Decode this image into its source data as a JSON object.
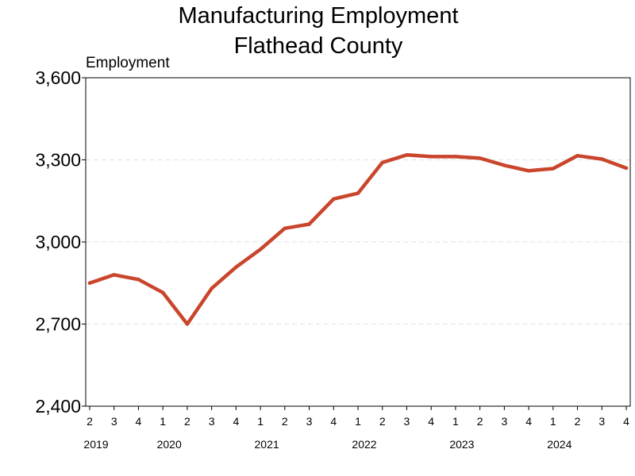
{
  "chart_data": {
    "type": "line",
    "title_lines": [
      "Manufacturing Employment",
      "Flathead County"
    ],
    "ylabel": "Employment",
    "xlabel": "",
    "ylim": [
      2400,
      3600
    ],
    "y_ticks": [
      2400,
      2700,
      3000,
      3300,
      3600
    ],
    "y_tick_labels": [
      "2,400",
      "2,700",
      "3,000",
      "3,300",
      "3,600"
    ],
    "grid": "horizontal dashed",
    "line_color": "#c9452c",
    "categories": [
      "2",
      "3",
      "4",
      "1",
      "2",
      "3",
      "4",
      "1",
      "2",
      "3",
      "4",
      "1",
      "2",
      "3",
      "4",
      "1",
      "2",
      "3",
      "4",
      "1",
      "2",
      "3",
      "4"
    ],
    "year_labels": [
      {
        "label": "2019",
        "index": 0
      },
      {
        "label": "2020",
        "index": 3
      },
      {
        "label": "2021",
        "index": 7
      },
      {
        "label": "2022",
        "index": 11
      },
      {
        "label": "2023",
        "index": 15
      },
      {
        "label": "2024",
        "index": 19
      }
    ],
    "series": [
      {
        "values": [
          2850,
          2880,
          2863,
          2815,
          2700,
          2830,
          2908,
          2973,
          3050,
          3065,
          3157,
          3178,
          3290,
          3318,
          3312,
          3312,
          3306,
          3280,
          3260,
          3268,
          3315,
          3303,
          3270
        ]
      }
    ]
  }
}
